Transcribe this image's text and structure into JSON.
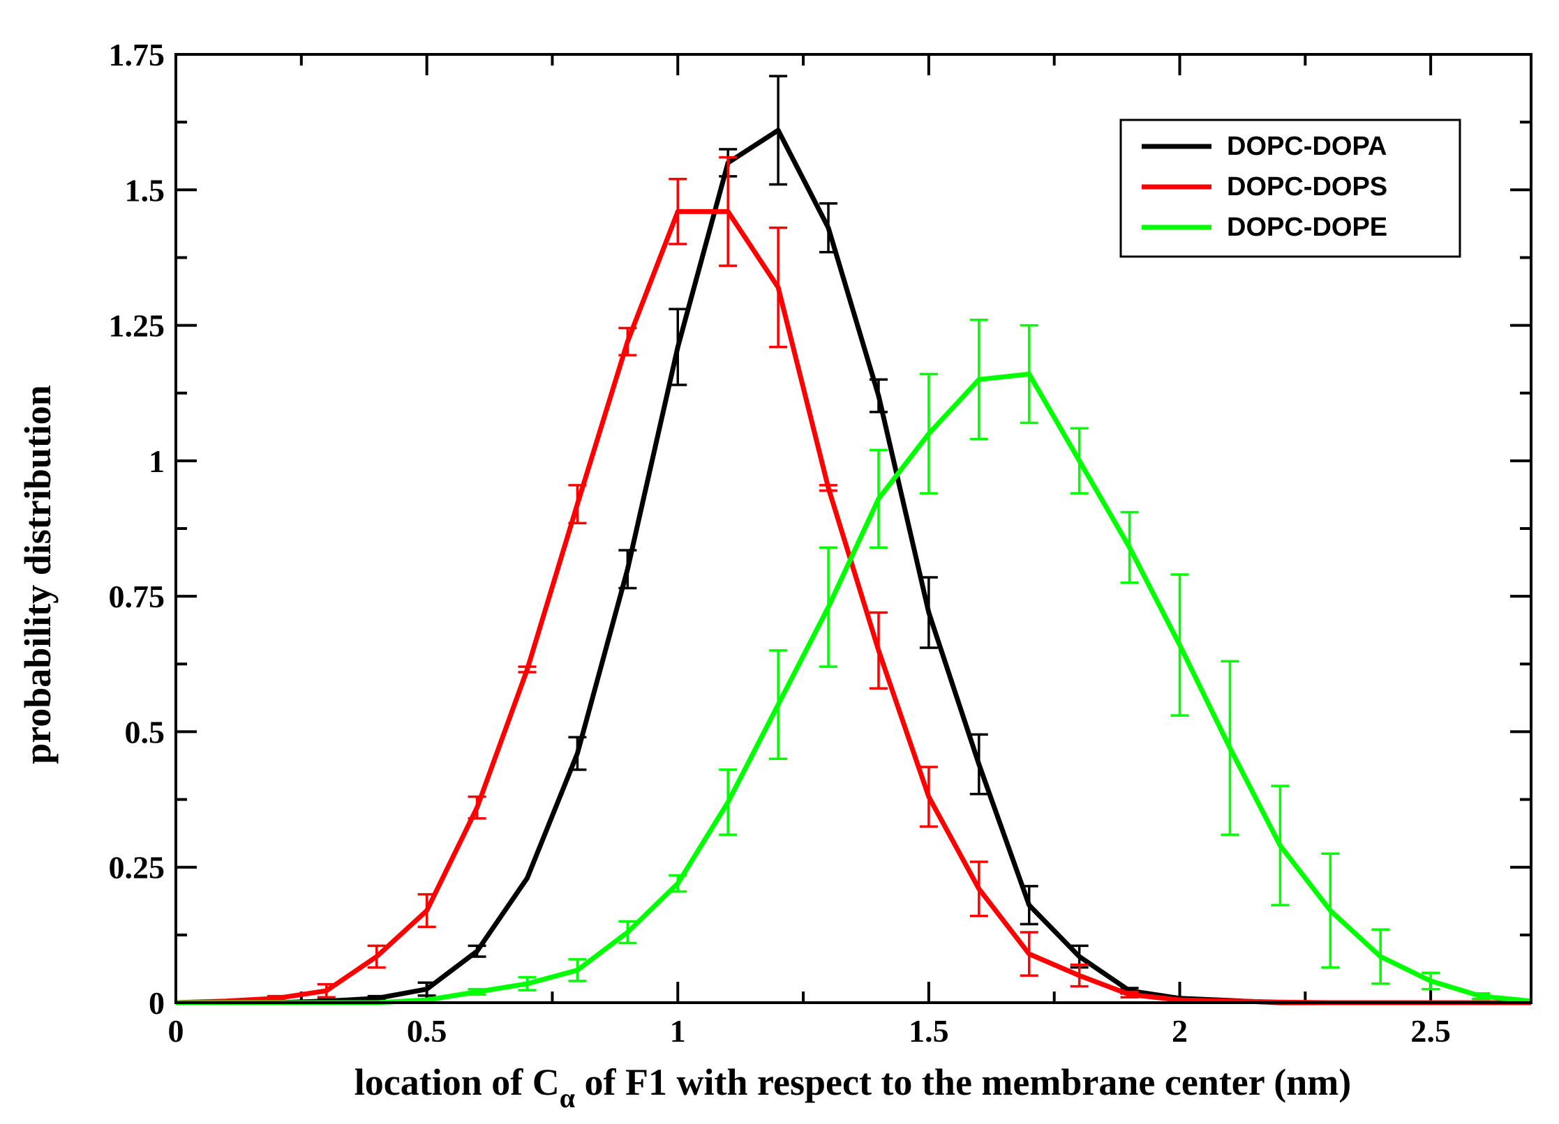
{
  "chart_data": {
    "type": "line",
    "title": "",
    "xlabel_main": "location of C",
    "xlabel_sub": "α",
    "xlabel_rest": " of F1 with respect to the membrane center (nm)",
    "ylabel": "probability distribution",
    "xlim": [
      0,
      2.7
    ],
    "ylim": [
      0,
      1.75
    ],
    "x_ticks": [
      0,
      0.5,
      1,
      1.5,
      2,
      2.5
    ],
    "x_tick_labels": [
      "0",
      "0.5",
      "1",
      "1.5",
      "2",
      "2.5"
    ],
    "y_ticks": [
      0,
      0.25,
      0.5,
      0.75,
      1,
      1.25,
      1.5,
      1.75
    ],
    "y_tick_labels": [
      "0",
      "0.25",
      "0.5",
      "0.75",
      "1",
      "1.25",
      "1.5",
      "1.75"
    ],
    "legend_position": "top-right",
    "series": [
      {
        "name": "DOPC-DOPA",
        "color": "#000000",
        "x": [
          0,
          0.1,
          0.2,
          0.3,
          0.4,
          0.5,
          0.6,
          0.7,
          0.8,
          0.9,
          1.0,
          1.1,
          1.2,
          1.3,
          1.4,
          1.5,
          1.6,
          1.7,
          1.8,
          1.9,
          2.0,
          2.1,
          2.2,
          2.3,
          2.4,
          2.5,
          2.6,
          2.7
        ],
        "y": [
          0,
          0,
          0,
          0.003,
          0.008,
          0.025,
          0.095,
          0.23,
          0.46,
          0.8,
          1.21,
          1.55,
          1.61,
          1.43,
          1.12,
          0.72,
          0.44,
          0.18,
          0.085,
          0.022,
          0.008,
          0.004,
          0,
          0,
          0,
          0,
          0,
          0
        ],
        "err": [
          0,
          0,
          0,
          0.003,
          0.004,
          0.012,
          0.01,
          0,
          0.03,
          0.035,
          0.07,
          0.025,
          0.1,
          0.045,
          0.03,
          0.065,
          0.055,
          0.035,
          0.02,
          0.005,
          0,
          0,
          0,
          0,
          0,
          0,
          0,
          0
        ]
      },
      {
        "name": "DOPC-DOPS",
        "color": "#ff0000",
        "x": [
          0,
          0.1,
          0.2,
          0.3,
          0.4,
          0.5,
          0.6,
          0.7,
          0.8,
          0.9,
          1.0,
          1.1,
          1.2,
          1.3,
          1.4,
          1.5,
          1.6,
          1.7,
          1.8,
          1.9,
          2.0,
          2.1,
          2.2,
          2.3,
          2.4,
          2.5,
          2.6,
          2.7
        ],
        "y": [
          0,
          0.003,
          0.008,
          0.022,
          0.085,
          0.17,
          0.36,
          0.615,
          0.92,
          1.22,
          1.46,
          1.46,
          1.32,
          0.95,
          0.65,
          0.38,
          0.21,
          0.09,
          0.05,
          0.015,
          0.005,
          0.003,
          0.001,
          0,
          0,
          0,
          0,
          0
        ],
        "err": [
          0,
          0,
          0.004,
          0.012,
          0.02,
          0.03,
          0.02,
          0.005,
          0.035,
          0.025,
          0.06,
          0.1,
          0.11,
          0.005,
          0.07,
          0.055,
          0.05,
          0.04,
          0.02,
          0.005,
          0,
          0,
          0,
          0,
          0,
          0,
          0,
          0
        ]
      },
      {
        "name": "DOPC-DOPE",
        "color": "#00ff00",
        "x": [
          0,
          0.1,
          0.2,
          0.3,
          0.4,
          0.5,
          0.6,
          0.7,
          0.8,
          0.9,
          1.0,
          1.1,
          1.2,
          1.3,
          1.4,
          1.5,
          1.6,
          1.7,
          1.8,
          1.9,
          2.0,
          2.1,
          2.2,
          2.3,
          2.4,
          2.5,
          2.6,
          2.7
        ],
        "y": [
          0,
          0,
          0,
          0,
          0,
          0.005,
          0.02,
          0.035,
          0.06,
          0.13,
          0.22,
          0.37,
          0.55,
          0.73,
          0.93,
          1.05,
          1.15,
          1.16,
          1.0,
          0.84,
          0.66,
          0.47,
          0.29,
          0.17,
          0.085,
          0.04,
          0.012,
          0.003
        ],
        "err": [
          0,
          0,
          0,
          0,
          0,
          0,
          0.005,
          0.012,
          0.02,
          0.02,
          0.015,
          0.06,
          0.1,
          0.11,
          0.09,
          0.11,
          0.11,
          0.09,
          0.06,
          0.065,
          0.13,
          0.16,
          0.11,
          0.105,
          0.05,
          0.015,
          0.005,
          0
        ]
      }
    ]
  }
}
